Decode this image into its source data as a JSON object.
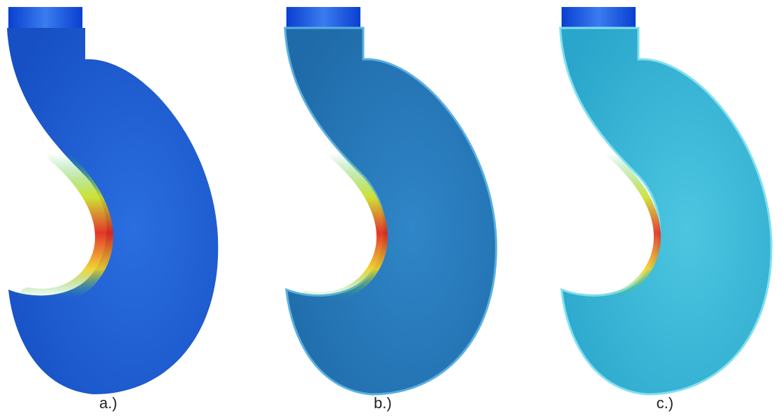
{
  "panels": [
    {
      "label": "a.)"
    },
    {
      "label": "b.)"
    },
    {
      "label": "c.)"
    }
  ]
}
